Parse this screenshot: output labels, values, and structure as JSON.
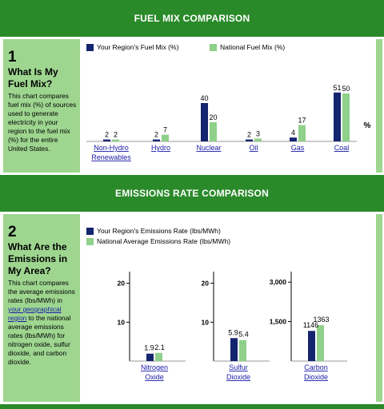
{
  "banners": {
    "fuel": "FUEL MIX COMPARISON",
    "emissions": "EMISSIONS RATE COMPARISON"
  },
  "section1": {
    "number": "1",
    "question": "What Is My Fuel Mix?",
    "description": "This chart compares fuel mix (%) of sources used to generate electricity in your region to the fuel mix (%) for the entire United States."
  },
  "section2": {
    "number": "2",
    "question": "What Are the Emissions in My Area?",
    "desc_before": "This chart compares the average emissions rates (lbs/MWh) in ",
    "desc_link": "your geographical region",
    "desc_after": " to the national average emissions rates (lbs/MWh) for nitrogen oxide, sulfur dioxide, and carbon dioxide."
  },
  "colors": {
    "region": "#14246e",
    "national": "#8fd08a",
    "banner": "#2a8a2a",
    "panel": "#9ed690",
    "link": "#1a1aa8"
  },
  "chart_data": [
    {
      "type": "bar",
      "unit_label": "%",
      "categories": [
        "Non-Hydro Renewables",
        "Hydro",
        "Nuclear",
        "Oil",
        "Gas",
        "Coal"
      ],
      "series": [
        {
          "name": "Your Region's Fuel Mix (%)",
          "values": [
            2,
            2,
            40,
            2,
            4,
            51
          ]
        },
        {
          "name": "National Fuel Mix (%)",
          "values": [
            2,
            7,
            20,
            3,
            17,
            50
          ]
        }
      ],
      "ylim": [
        0,
        55
      ],
      "grid": false,
      "legend": "top"
    },
    {
      "type": "bar",
      "series_names": [
        "Your Region's Emissions Rate (lbs/MWh)",
        "National Average Emissions Rate (lbs/MWh)"
      ],
      "legend": "top",
      "grid": false,
      "panels": [
        {
          "category": "Nitrogen Oxide",
          "region": 1.9,
          "national": 2.1,
          "ylim": [
            0,
            23
          ],
          "ticks": [
            "10",
            "20"
          ]
        },
        {
          "category": "Sulfur Dioxide",
          "region": 5.9,
          "national": 5.4,
          "ylim": [
            0,
            23
          ],
          "ticks": [
            "10",
            "20"
          ]
        },
        {
          "category": "Carbon Dioxide",
          "region": 1146,
          "national": 1363,
          "ylim": [
            0,
            3400
          ],
          "ticks": [
            "1,500",
            "3,000"
          ]
        }
      ]
    }
  ]
}
